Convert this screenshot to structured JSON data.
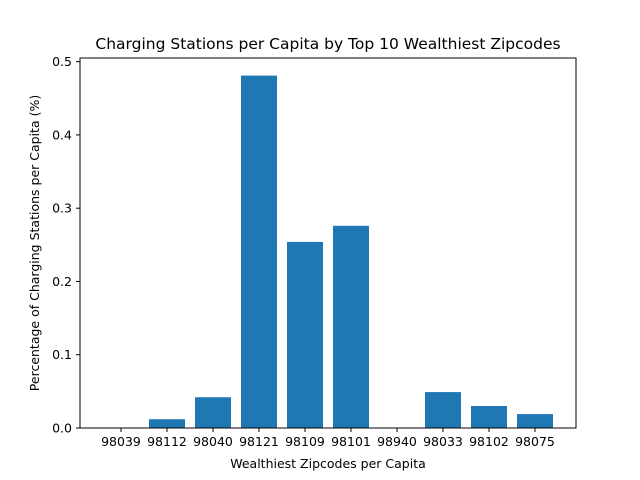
{
  "chart_data": {
    "type": "bar",
    "title": "Charging Stations per Capita by Top 10 Wealthiest Zipcodes",
    "xlabel": "Wealthiest Zipcodes per Capita",
    "ylabel": "Percentage of Charging Stations per Capita (%)",
    "categories": [
      "98039",
      "98112",
      "98040",
      "98121",
      "98109",
      "98101",
      "98940",
      "98033",
      "98102",
      "98075"
    ],
    "values": [
      0.0,
      0.012,
      0.042,
      0.481,
      0.254,
      0.276,
      0.0,
      0.049,
      0.03,
      0.019
    ],
    "ylim": [
      0,
      0.505
    ],
    "yticks": [
      0.0,
      0.1,
      0.2,
      0.3,
      0.4,
      0.5
    ],
    "ytick_labels": [
      "0.0",
      "0.1",
      "0.2",
      "0.3",
      "0.4",
      "0.5"
    ],
    "bar_color": "#1f77b4",
    "grid": false,
    "legend": "none"
  }
}
